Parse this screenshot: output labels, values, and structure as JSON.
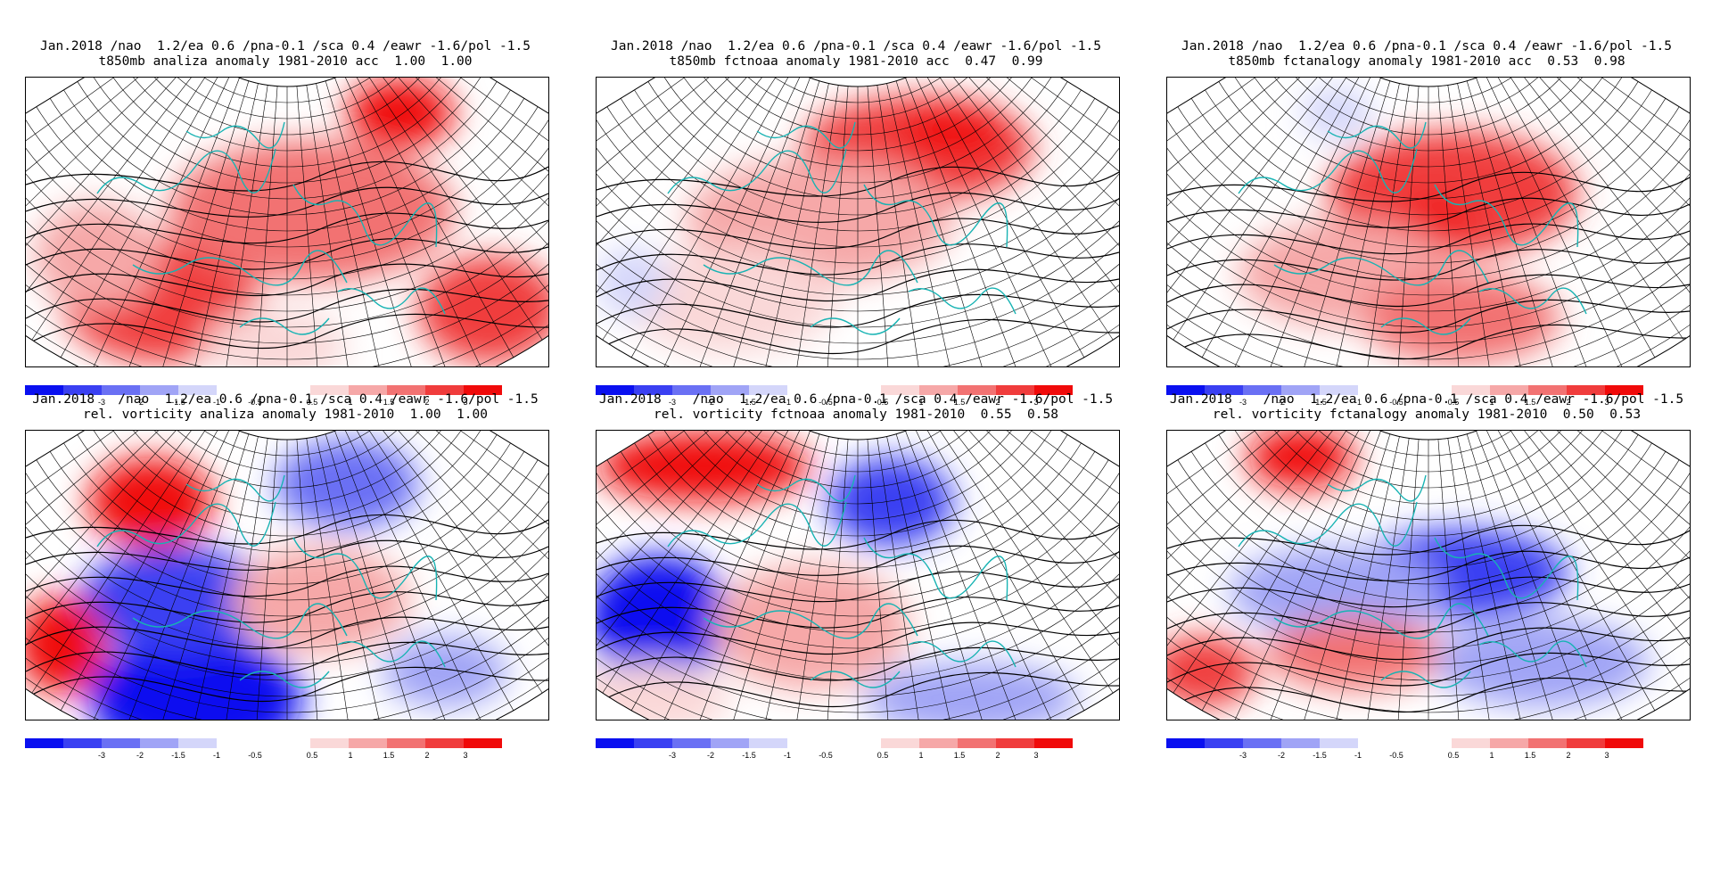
{
  "panels": [
    {
      "id": "p1",
      "title_line1": "Jan.2018 /nao  1.2/ea 0.6 /pna-0.1 /sca 0.4 /eawr -1.6/pol -1.5",
      "title_line2": "t850mb analiza anomaly 1981-2010 acc  1.00  1.00",
      "field": "t850mb",
      "source": "analiza",
      "acc": [
        "1.00",
        "1.00"
      ]
    },
    {
      "id": "p2",
      "title_line1": "Jan.2018 /nao  1.2/ea 0.6 /pna-0.1 /sca 0.4 /eawr -1.6/pol -1.5",
      "title_line2": "t850mb fctnoaa anomaly 1981-2010 acc  0.47  0.99",
      "field": "t850mb",
      "source": "fctnoaa",
      "acc": [
        "0.47",
        "0.99"
      ]
    },
    {
      "id": "p3",
      "title_line1": "Jan.2018 /nao  1.2/ea 0.6 /pna-0.1 /sca 0.4 /eawr -1.6/pol -1.5",
      "title_line2": "t850mb fctanalogy anomaly 1981-2010 acc  0.53  0.98",
      "field": "t850mb",
      "source": "fctanalogy",
      "acc": [
        "0.53",
        "0.98"
      ]
    },
    {
      "id": "p4",
      "title_line1": "Jan.2018   /nao  1.2/ea 0.6 /pna-0.1 /sca 0.4 /eawr -1.6/pol -1.5",
      "title_line2": "rel. vorticity analiza anomaly 1981-2010  1.00  1.00",
      "field": "rel. vorticity",
      "source": "analiza",
      "acc": [
        "1.00",
        "1.00"
      ]
    },
    {
      "id": "p5",
      "title_line1": "Jan.2018    /nao  1.2/ea 0.6 /pna-0.1 /sca 0.4 /eawr -1.6/pol -1.5",
      "title_line2": "rel. vorticity fctnoaa anomaly 1981-2010  0.55  0.58",
      "field": "rel. vorticity",
      "source": "fctnoaa",
      "acc": [
        "0.55",
        "0.58"
      ]
    },
    {
      "id": "p6",
      "title_line1": "Jan.2018    /nao  1.2/ea 0.6 /pna-0.1 /sca 0.4 /eawr -1.6/pol -1.5",
      "title_line2": "rel. vorticity fctanalogy anomaly 1981-2010  0.50  0.53",
      "field": "rel. vorticity",
      "source": "fctanalogy",
      "acc": [
        "0.50",
        "0.53"
      ]
    }
  ],
  "legend": {
    "tick_labels": [
      "-3",
      "-2",
      "-1.5",
      "-1",
      "-0.5",
      "0.5",
      "1",
      "1.5",
      "2",
      "3"
    ],
    "negative_colors": [
      "#0a10f0",
      "#3a40f2",
      "#6a70f4",
      "#a0a4f6",
      "#d4d6fa"
    ],
    "positive_colors": [
      "#fad8d8",
      "#f6a8a8",
      "#f27272",
      "#f03c3c",
      "#f00a0a"
    ]
  },
  "colors": {
    "coastline": "#17b3b3",
    "grid": "#000000",
    "contour": "#000000"
  }
}
